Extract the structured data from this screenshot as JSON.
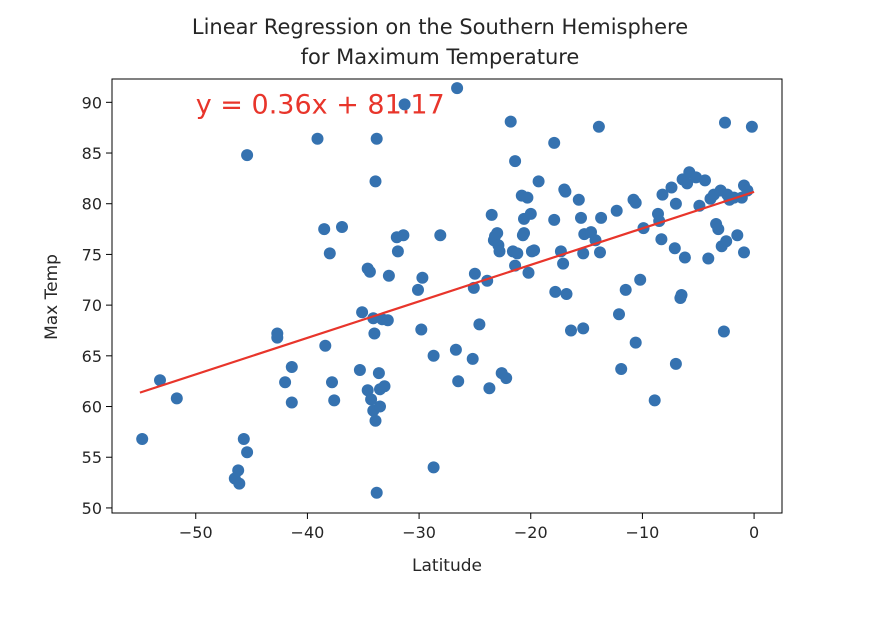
{
  "chart_data": {
    "type": "scatter",
    "title_lines": [
      "Linear Regression on the Southern Hemisphere",
      "for Maximum Temperature"
    ],
    "xlabel": "Latitude",
    "ylabel": "Max Temp",
    "xlim": [
      -57.5,
      2.5
    ],
    "ylim": [
      49.5,
      92.3
    ],
    "xticks": [
      -50,
      -40,
      -30,
      -20,
      -10,
      0
    ],
    "xtick_labels": [
      "−50",
      "−40",
      "−30",
      "−20",
      "−10",
      "0"
    ],
    "yticks": [
      50,
      55,
      60,
      65,
      70,
      75,
      80,
      85,
      90
    ],
    "ytick_labels": [
      "50",
      "55",
      "60",
      "65",
      "70",
      "75",
      "80",
      "85",
      "90"
    ],
    "grid": false,
    "point_color": "#3572b0",
    "regression": {
      "slope": 0.36,
      "intercept": 81.17,
      "x_range": [
        -55,
        0
      ],
      "equation": "y = 0.36x + 81.17",
      "color": "#e8352b",
      "equation_anchor": [
        -50,
        89.9
      ]
    },
    "points": [
      [
        -54.8,
        56.8
      ],
      [
        -53.2,
        62.6
      ],
      [
        -51.7,
        60.8
      ],
      [
        -46.5,
        52.9
      ],
      [
        -46.2,
        53.7
      ],
      [
        -46.1,
        52.4
      ],
      [
        -45.7,
        56.8
      ],
      [
        -45.4,
        55.5
      ],
      [
        -45.4,
        84.8
      ],
      [
        -42.7,
        67.2
      ],
      [
        -42.7,
        66.8
      ],
      [
        -42.0,
        62.4
      ],
      [
        -41.4,
        63.9
      ],
      [
        -41.4,
        60.4
      ],
      [
        -39.1,
        86.4
      ],
      [
        -38.5,
        77.5
      ],
      [
        -38.4,
        66.0
      ],
      [
        -38.0,
        75.1
      ],
      [
        -37.8,
        62.4
      ],
      [
        -37.6,
        60.6
      ],
      [
        -36.9,
        77.7
      ],
      [
        -35.3,
        63.6
      ],
      [
        -35.1,
        69.3
      ],
      [
        -34.6,
        73.6
      ],
      [
        -34.6,
        61.6
      ],
      [
        -34.4,
        73.3
      ],
      [
        -34.3,
        60.7
      ],
      [
        -34.1,
        59.6
      ],
      [
        -34.1,
        68.7
      ],
      [
        -34.0,
        67.2
      ],
      [
        -33.9,
        58.6
      ],
      [
        -33.9,
        82.2
      ],
      [
        -33.8,
        86.4
      ],
      [
        -33.8,
        51.5
      ],
      [
        -33.6,
        63.3
      ],
      [
        -33.5,
        61.7
      ],
      [
        -33.5,
        60.0
      ],
      [
        -33.3,
        68.6
      ],
      [
        -33.1,
        62.0
      ],
      [
        -32.8,
        68.5
      ],
      [
        -32.7,
        72.9
      ],
      [
        -32.0,
        76.7
      ],
      [
        -31.9,
        75.3
      ],
      [
        -31.4,
        76.9
      ],
      [
        -31.3,
        89.8
      ],
      [
        -30.1,
        71.5
      ],
      [
        -29.8,
        67.6
      ],
      [
        -29.7,
        72.7
      ],
      [
        -28.7,
        54.0
      ],
      [
        -28.7,
        65.0
      ],
      [
        -28.1,
        76.9
      ],
      [
        -26.7,
        65.6
      ],
      [
        -26.6,
        91.4
      ],
      [
        -26.5,
        62.5
      ],
      [
        -25.2,
        64.7
      ],
      [
        -25.1,
        71.7
      ],
      [
        -25.0,
        73.1
      ],
      [
        -24.6,
        68.1
      ],
      [
        -23.9,
        72.4
      ],
      [
        -23.7,
        61.8
      ],
      [
        -23.5,
        78.9
      ],
      [
        -23.3,
        76.4
      ],
      [
        -23.2,
        76.8
      ],
      [
        -23.0,
        77.1
      ],
      [
        -22.9,
        75.9
      ],
      [
        -22.8,
        75.3
      ],
      [
        -22.6,
        63.3
      ],
      [
        -22.2,
        62.8
      ],
      [
        -21.8,
        88.1
      ],
      [
        -21.6,
        75.3
      ],
      [
        -21.4,
        84.2
      ],
      [
        -21.4,
        73.9
      ],
      [
        -21.2,
        75.1
      ],
      [
        -20.8,
        80.8
      ],
      [
        -20.7,
        76.9
      ],
      [
        -20.6,
        78.5
      ],
      [
        -20.6,
        77.1
      ],
      [
        -20.3,
        80.6
      ],
      [
        -20.2,
        73.2
      ],
      [
        -20.0,
        79.0
      ],
      [
        -19.9,
        75.3
      ],
      [
        -19.7,
        75.4
      ],
      [
        -19.3,
        82.2
      ],
      [
        -17.9,
        86.0
      ],
      [
        -17.9,
        78.4
      ],
      [
        -17.8,
        71.3
      ],
      [
        -17.3,
        75.3
      ],
      [
        -17.1,
        74.1
      ],
      [
        -17.0,
        81.4
      ],
      [
        -16.9,
        81.2
      ],
      [
        -16.8,
        71.1
      ],
      [
        -16.4,
        67.5
      ],
      [
        -15.7,
        80.4
      ],
      [
        -15.5,
        78.6
      ],
      [
        -15.3,
        67.7
      ],
      [
        -15.3,
        75.1
      ],
      [
        -15.2,
        77.0
      ],
      [
        -14.6,
        77.2
      ],
      [
        -14.2,
        76.4
      ],
      [
        -13.9,
        87.6
      ],
      [
        -13.8,
        75.2
      ],
      [
        -13.7,
        78.6
      ],
      [
        -12.3,
        79.3
      ],
      [
        -12.1,
        69.1
      ],
      [
        -11.9,
        63.7
      ],
      [
        -11.5,
        71.5
      ],
      [
        -10.8,
        80.4
      ],
      [
        -10.6,
        80.1
      ],
      [
        -10.6,
        66.3
      ],
      [
        -10.2,
        72.5
      ],
      [
        -9.9,
        77.6
      ],
      [
        -8.9,
        60.6
      ],
      [
        -8.6,
        79.0
      ],
      [
        -8.5,
        78.3
      ],
      [
        -8.3,
        76.5
      ],
      [
        -8.2,
        80.9
      ],
      [
        -7.4,
        81.6
      ],
      [
        -7.1,
        75.6
      ],
      [
        -7.0,
        64.2
      ],
      [
        -7.0,
        80.0
      ],
      [
        -6.6,
        70.7
      ],
      [
        -6.5,
        71.0
      ],
      [
        -6.4,
        82.4
      ],
      [
        -6.2,
        74.7
      ],
      [
        -6.0,
        82.0
      ],
      [
        -5.8,
        83.1
      ],
      [
        -5.2,
        82.6
      ],
      [
        -4.9,
        79.8
      ],
      [
        -4.4,
        82.3
      ],
      [
        -4.1,
        74.6
      ],
      [
        -3.9,
        80.5
      ],
      [
        -3.6,
        80.9
      ],
      [
        -3.4,
        78.0
      ],
      [
        -3.2,
        77.5
      ],
      [
        -3.0,
        81.3
      ],
      [
        -2.9,
        75.8
      ],
      [
        -2.7,
        67.4
      ],
      [
        -2.6,
        88.0
      ],
      [
        -2.5,
        76.3
      ],
      [
        -2.4,
        80.9
      ],
      [
        -2.2,
        80.4
      ],
      [
        -1.8,
        80.6
      ],
      [
        -1.5,
        76.9
      ],
      [
        -1.1,
        80.6
      ],
      [
        -0.9,
        75.2
      ],
      [
        -0.9,
        81.8
      ],
      [
        -0.6,
        81.3
      ],
      [
        -0.2,
        87.6
      ]
    ]
  }
}
